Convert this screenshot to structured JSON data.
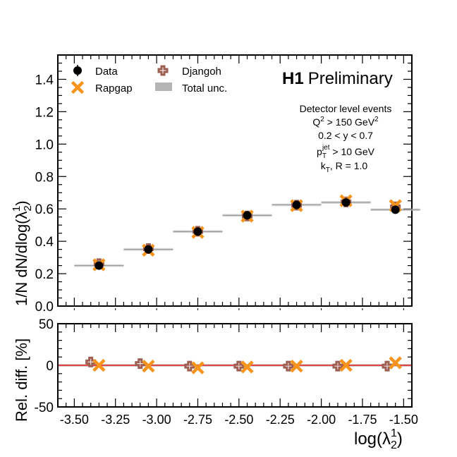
{
  "figure": {
    "experiment_bold": "H1",
    "experiment_status": "Preliminary",
    "ylabel_top": "1/N dN/dlog(λ",
    "ylabel_top_sub": "2",
    "ylabel_top_sup": "1",
    "ylabel_top_end": ")",
    "ylabel_bottom": "Rel. diff. [%]",
    "xlabel": "log(λ",
    "xlabel_sub": "2",
    "xlabel_sup": "1",
    "xlabel_end": ")",
    "cuts": {
      "line1": "Detector level events",
      "line2_pre": "Q",
      "line2_sup": "2",
      "line2_mid": " > 150 GeV",
      "line2_sup2": "2",
      "line3": "0.2 < y < 0.7",
      "line4_pre": "p",
      "line4_sub": "T",
      "line4_sup": "jet",
      "line4_post": " > 10 GeV",
      "line5_pre": "k",
      "line5_sub": "T",
      "line5_post": ", R = 1.0"
    },
    "legend": {
      "data": "Data",
      "rapgap": "Rapgap",
      "djangoh": "Djangoh",
      "total_unc": "Total unc."
    },
    "colors": {
      "data": "#000000",
      "rapgap": "#f7941d",
      "djangoh": "#9c5f52",
      "unc_band": "#b4b4b4",
      "ratio_line": "#e8191c"
    }
  },
  "chart_data": [
    {
      "type": "scatter",
      "panel": "main",
      "xlim": [
        -3.6,
        -1.45
      ],
      "ylim": [
        0.0,
        1.55
      ],
      "yticks": [
        0.0,
        0.2,
        0.4,
        0.6,
        0.8,
        1.0,
        1.2,
        1.4
      ],
      "ytick_labels": [
        "0.0",
        "0.2",
        "0.4",
        "0.6",
        "0.8",
        "1.0",
        "1.2",
        "1.4"
      ],
      "bins": [
        [
          -3.5,
          -3.2
        ],
        [
          -3.2,
          -2.9
        ],
        [
          -2.9,
          -2.6
        ],
        [
          -2.6,
          -2.3
        ],
        [
          -2.3,
          -2.0
        ],
        [
          -2.0,
          -1.7
        ],
        [
          -1.7,
          -1.4
        ]
      ],
      "x": [
        -3.35,
        -3.05,
        -2.75,
        -2.45,
        -2.15,
        -1.85,
        -1.55
      ],
      "series": [
        {
          "name": "Data",
          "values": [
            0.25,
            0.35,
            0.46,
            0.56,
            0.625,
            0.64,
            0.595
          ],
          "errors": [
            0.015,
            0.015,
            0.015,
            0.015,
            0.015,
            0.015,
            0.015
          ]
        },
        {
          "name": "Rapgap",
          "values": [
            0.255,
            0.345,
            0.455,
            0.555,
            0.62,
            0.65,
            0.62
          ]
        },
        {
          "name": "Djangoh",
          "values": [
            0.262,
            0.355,
            0.462,
            0.556,
            0.623,
            0.643,
            0.612
          ]
        }
      ],
      "total_unc": [
        0.008,
        0.008,
        0.008,
        0.008,
        0.008,
        0.008,
        0.008
      ]
    },
    {
      "type": "scatter",
      "panel": "ratio",
      "xlim": [
        -3.6,
        -1.45
      ],
      "ylim": [
        -50,
        50
      ],
      "yticks": [
        -50,
        0,
        50
      ],
      "ytick_labels": [
        "-50",
        "0",
        "50"
      ],
      "xticks": [
        -3.5,
        -3.25,
        -3.0,
        -2.75,
        -2.5,
        -2.25,
        -2.0,
        -1.75,
        -1.5
      ],
      "xtick_labels": [
        "-3.50",
        "-3.25",
        "-3.00",
        "-2.75",
        "-2.50",
        "-2.25",
        "-2.00",
        "-1.75",
        "-1.50"
      ],
      "series": [
        {
          "name": "Djangoh",
          "x": [
            -3.4,
            -3.1,
            -2.8,
            -2.5,
            -2.2,
            -1.9,
            -1.6
          ],
          "values": [
            4,
            2,
            -1,
            -1,
            -1,
            -1,
            -1
          ]
        },
        {
          "name": "Rapgap",
          "x": [
            -3.35,
            -3.05,
            -2.75,
            -2.45,
            -2.15,
            -1.85,
            -1.55
          ],
          "values": [
            0,
            -1,
            -3,
            -2,
            -1,
            0,
            3
          ]
        }
      ],
      "reference_line": 0
    }
  ]
}
